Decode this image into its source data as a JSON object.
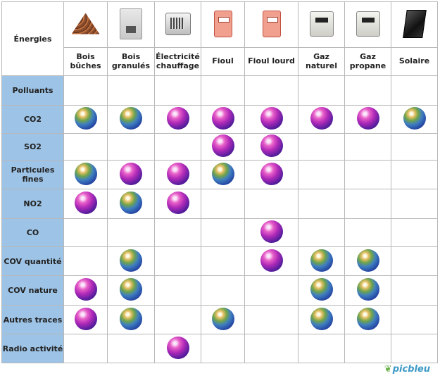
{
  "corner_label": "Énergies",
  "columns": [
    {
      "label": "Bois bûches",
      "icon": "firewood-logs-icon",
      "icon_class": "logs"
    },
    {
      "label": "Bois granulés",
      "icon": "pellet-stove-icon",
      "icon_class": "pellet"
    },
    {
      "label": "Électricité chauffage",
      "icon": "electric-heater-icon",
      "icon_class": "heater"
    },
    {
      "label": "Fioul",
      "icon": "oil-boiler-icon",
      "icon_class": "boiler"
    },
    {
      "label": "Fioul lourd",
      "icon": "heavy-oil-boiler-icon",
      "icon_class": "boiler"
    },
    {
      "label": "Gaz naturel",
      "icon": "gas-meter-icon",
      "icon_class": "meter"
    },
    {
      "label": "Gaz propane",
      "icon": "propane-meter-icon",
      "icon_class": "meter"
    },
    {
      "label": "Solaire",
      "icon": "solar-panel-icon",
      "icon_class": "solar"
    }
  ],
  "rows": [
    {
      "label": "Polluants",
      "cells": [
        "",
        "",
        "",
        "",
        "",
        "",
        "",
        ""
      ]
    },
    {
      "label": "CO2",
      "cells": [
        "green",
        "green",
        "pink",
        "pink",
        "pink",
        "pink",
        "pink",
        "green"
      ]
    },
    {
      "label": "SO2",
      "cells": [
        "",
        "",
        "",
        "pink",
        "pink",
        "",
        "",
        ""
      ]
    },
    {
      "label": "Particules fines",
      "cells": [
        "green",
        "pink",
        "pink",
        "green",
        "pink",
        "",
        "",
        ""
      ]
    },
    {
      "label": "NO2",
      "cells": [
        "pink",
        "green",
        "pink",
        "",
        "",
        "",
        "",
        ""
      ]
    },
    {
      "label": "CO",
      "cells": [
        "",
        "",
        "",
        "",
        "pink",
        "",
        "",
        ""
      ]
    },
    {
      "label": "COV quantité",
      "cells": [
        "",
        "green",
        "",
        "",
        "pink",
        "green",
        "green",
        ""
      ]
    },
    {
      "label": "COV nature",
      "cells": [
        "pink",
        "green",
        "",
        "",
        "",
        "green",
        "green",
        ""
      ]
    },
    {
      "label": "Autres traces",
      "cells": [
        "pink",
        "green",
        "",
        "green",
        "",
        "green",
        "green",
        ""
      ]
    },
    {
      "label": "Radio activité",
      "cells": [
        "",
        "",
        "pink",
        "",
        "",
        "",
        "",
        ""
      ]
    }
  ],
  "globe_colors": {
    "green": "#3f7fc0",
    "pink": "#b02ab8"
  },
  "logo_text": "picbleu"
}
